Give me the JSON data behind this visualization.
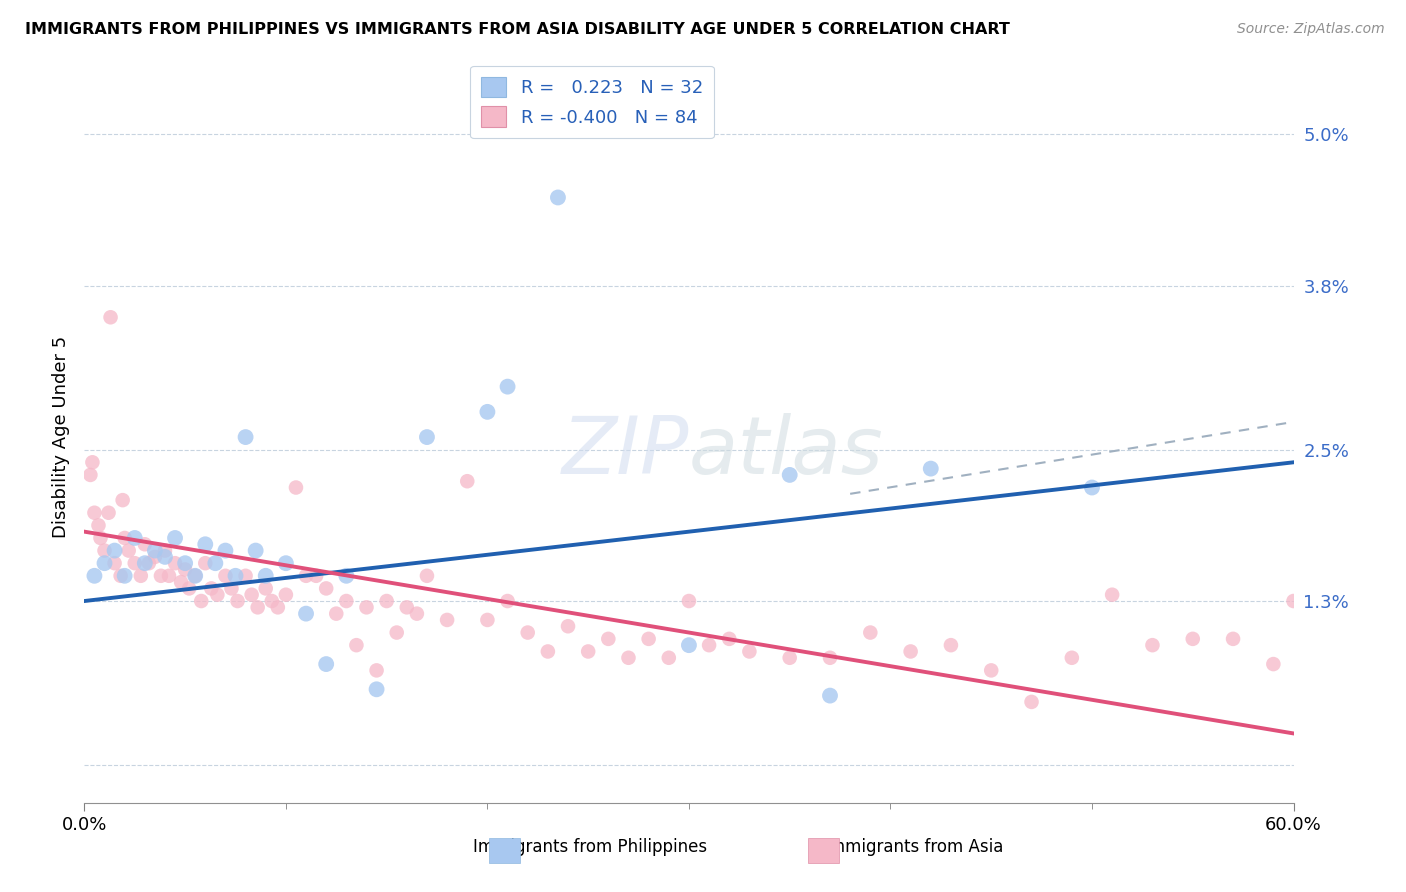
{
  "title": "IMMIGRANTS FROM PHILIPPINES VS IMMIGRANTS FROM ASIA DISABILITY AGE UNDER 5 CORRELATION CHART",
  "source": "Source: ZipAtlas.com",
  "ylabel": "Disability Age Under 5",
  "ytick_values": [
    0.0,
    1.3,
    2.5,
    3.8,
    5.0
  ],
  "ytick_labels": [
    "",
    "1.3%",
    "2.5%",
    "3.8%",
    "5.0%"
  ],
  "xtick_values": [
    0.0,
    60.0
  ],
  "xtick_labels": [
    "0.0%",
    "60.0%"
  ],
  "xmin": 0.0,
  "xmax": 60.0,
  "ymin": -0.3,
  "ymax": 5.5,
  "legend_label1": "Immigrants from Philippines",
  "legend_label2": "Immigrants from Asia",
  "r1": 0.223,
  "n1": 32,
  "r2": -0.4,
  "n2": 84,
  "color_blue": "#A8C8F0",
  "color_pink": "#F5B8C8",
  "color_blue_line": "#2060B0",
  "color_pink_line": "#E0507A",
  "color_dashed": "#A0B0C0",
  "blue_line_x0": 0.0,
  "blue_line_y0": 1.3,
  "blue_line_x1": 60.0,
  "blue_line_y1": 2.4,
  "pink_line_x0": 0.0,
  "pink_line_y0": 1.85,
  "pink_line_x1": 60.0,
  "pink_line_y1": 0.25,
  "dash_line_x0": 38.0,
  "dash_line_y0": 2.15,
  "dash_line_x1": 60.0,
  "dash_line_y1": 2.72,
  "blue_x": [
    0.5,
    1.0,
    1.5,
    2.0,
    2.5,
    3.0,
    3.5,
    4.0,
    4.5,
    5.0,
    5.5,
    6.0,
    6.5,
    7.0,
    7.5,
    8.0,
    8.5,
    9.0,
    10.0,
    11.0,
    12.0,
    13.0,
    14.5,
    17.0,
    20.0,
    21.0,
    23.5,
    30.0,
    35.0,
    37.0,
    42.0,
    50.0
  ],
  "blue_y": [
    1.5,
    1.6,
    1.7,
    1.5,
    1.8,
    1.6,
    1.7,
    1.65,
    1.8,
    1.6,
    1.5,
    1.75,
    1.6,
    1.7,
    1.5,
    2.6,
    1.7,
    1.5,
    1.6,
    1.2,
    0.8,
    1.5,
    0.6,
    2.6,
    2.8,
    3.0,
    4.5,
    0.95,
    2.3,
    0.55,
    2.35,
    2.2
  ],
  "pink_x": [
    0.3,
    0.5,
    0.8,
    1.0,
    1.2,
    1.5,
    1.8,
    2.0,
    2.2,
    2.5,
    2.8,
    3.0,
    3.2,
    3.5,
    3.8,
    4.0,
    4.2,
    4.5,
    4.8,
    5.0,
    5.2,
    5.5,
    5.8,
    6.0,
    6.3,
    6.6,
    7.0,
    7.3,
    7.6,
    8.0,
    8.3,
    8.6,
    9.0,
    9.3,
    9.6,
    10.0,
    10.5,
    11.0,
    11.5,
    12.0,
    12.5,
    13.0,
    13.5,
    14.0,
    14.5,
    15.0,
    15.5,
    16.0,
    16.5,
    17.0,
    18.0,
    19.0,
    20.0,
    21.0,
    22.0,
    23.0,
    24.0,
    25.0,
    26.0,
    27.0,
    28.0,
    29.0,
    30.0,
    31.0,
    32.0,
    33.0,
    35.0,
    37.0,
    39.0,
    41.0,
    43.0,
    45.0,
    47.0,
    49.0,
    51.0,
    53.0,
    55.0,
    57.0,
    59.0,
    60.0,
    0.4,
    0.7,
    1.3,
    1.9
  ],
  "pink_y": [
    2.3,
    2.0,
    1.8,
    1.7,
    2.0,
    1.6,
    1.5,
    1.8,
    1.7,
    1.6,
    1.5,
    1.75,
    1.6,
    1.65,
    1.5,
    1.7,
    1.5,
    1.6,
    1.45,
    1.55,
    1.4,
    1.5,
    1.3,
    1.6,
    1.4,
    1.35,
    1.5,
    1.4,
    1.3,
    1.5,
    1.35,
    1.25,
    1.4,
    1.3,
    1.25,
    1.35,
    2.2,
    1.5,
    1.5,
    1.4,
    1.2,
    1.3,
    0.95,
    1.25,
    0.75,
    1.3,
    1.05,
    1.25,
    1.2,
    1.5,
    1.15,
    2.25,
    1.15,
    1.3,
    1.05,
    0.9,
    1.1,
    0.9,
    1.0,
    0.85,
    1.0,
    0.85,
    1.3,
    0.95,
    1.0,
    0.9,
    0.85,
    0.85,
    1.05,
    0.9,
    0.95,
    0.75,
    0.5,
    0.85,
    1.35,
    0.95,
    1.0,
    1.0,
    0.8,
    1.3,
    2.4,
    1.9,
    3.55,
    2.1
  ]
}
